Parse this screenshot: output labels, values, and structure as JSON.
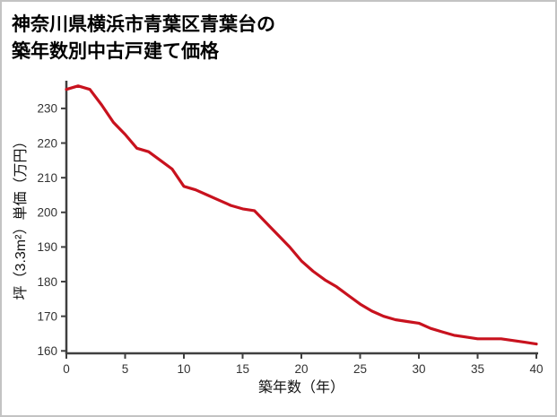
{
  "page": {
    "background": "#ffffff",
    "border_color": "#c3c3c3"
  },
  "title": {
    "line1": "神奈川県横浜市青葉区青葉台の",
    "line2": "築年数別中古戸建て価格"
  },
  "chart_data": {
    "type": "line",
    "title": "神奈川県横浜市青葉区青葉台の築年数別中古戸建て価格",
    "xlabel": "築年数（年）",
    "ylabel": "坪（3.3m²）単価（万円）",
    "x": [
      0,
      1,
      2,
      3,
      4,
      5,
      6,
      7,
      8,
      9,
      10,
      11,
      12,
      13,
      14,
      15,
      16,
      17,
      18,
      19,
      20,
      21,
      22,
      23,
      24,
      25,
      26,
      27,
      28,
      29,
      30,
      31,
      32,
      33,
      34,
      35,
      36,
      37,
      38,
      39,
      40
    ],
    "values": [
      235.5,
      236.5,
      235.5,
      231,
      226,
      222.5,
      218.5,
      217.5,
      215,
      212.5,
      207.5,
      206.5,
      205,
      203.5,
      202,
      201,
      200.5,
      197,
      193.5,
      190,
      186,
      183,
      180.5,
      178.5,
      176,
      173.5,
      171.5,
      170,
      169,
      168.5,
      168,
      166.5,
      165.5,
      164.5,
      164,
      163.5,
      163.5,
      163.5,
      163,
      162.5,
      162
    ],
    "xlim": [
      0,
      40
    ],
    "ylim": [
      159.3,
      238
    ],
    "xticks": [
      0,
      5,
      10,
      15,
      20,
      25,
      30,
      35,
      40
    ],
    "yticks": [
      160,
      170,
      180,
      190,
      200,
      210,
      220,
      230
    ],
    "grid": false,
    "legend": false,
    "line_color": "#c8121e",
    "axis_color": "#3f3f3f",
    "tick_label_color": "#333333"
  }
}
